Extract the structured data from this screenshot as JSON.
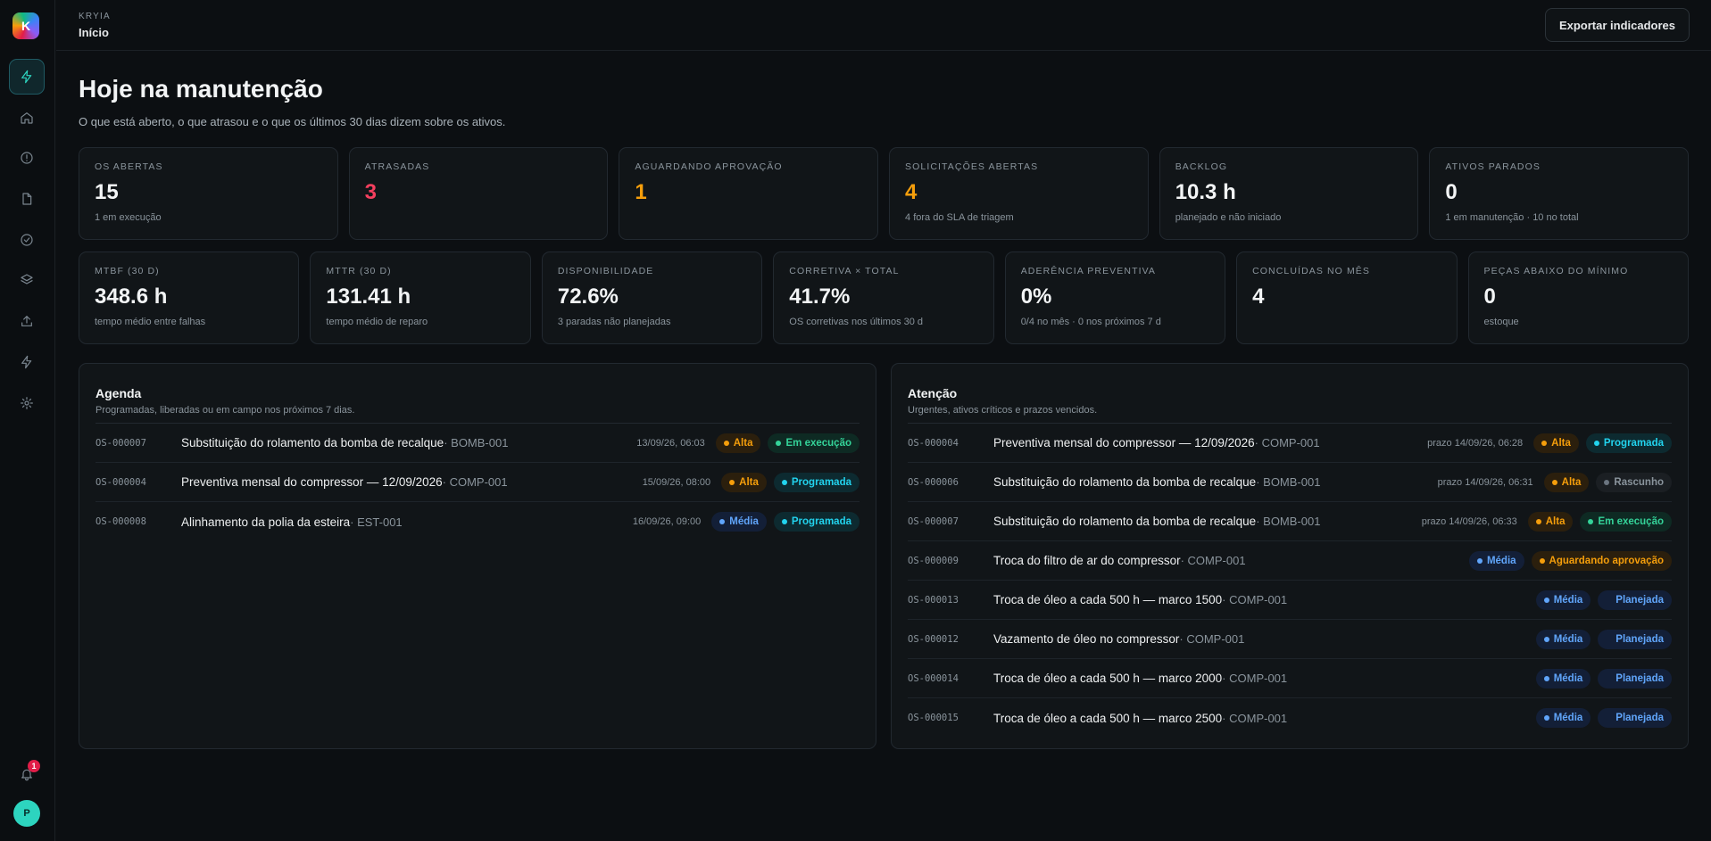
{
  "sidebar": {
    "logo_letter": "K",
    "nav": [
      {
        "name": "bolt-icon",
        "active": true
      },
      {
        "name": "home-icon"
      },
      {
        "name": "alert-icon"
      },
      {
        "name": "document-icon"
      },
      {
        "name": "check-circle-icon"
      },
      {
        "name": "layers-icon"
      },
      {
        "name": "upload-icon"
      },
      {
        "name": "lightning-icon"
      },
      {
        "name": "gear-icon"
      }
    ],
    "notifications_count": "1",
    "avatar_letter": "P"
  },
  "header": {
    "brand": "KRYIA",
    "page": "Início",
    "export_label": "Exportar indicadores"
  },
  "main": {
    "title": "Hoje na manutenção",
    "subtitle": "O que está aberto, o que atrasou e o que os últimos 30 dias dizem sobre os ativos."
  },
  "kpis_row1": [
    {
      "label": "OS ABERTAS",
      "value": "15",
      "sub": "1 em execução",
      "color": ""
    },
    {
      "label": "ATRASADAS",
      "value": "3",
      "sub": "",
      "color": "red"
    },
    {
      "label": "AGUARDANDO APROVAÇÃO",
      "value": "1",
      "sub": "",
      "color": "orange"
    },
    {
      "label": "SOLICITAÇÕES ABERTAS",
      "value": "4",
      "sub": "4 fora do SLA de triagem",
      "color": "orange"
    },
    {
      "label": "BACKLOG",
      "value": "10.3 h",
      "sub": "planejado e não iniciado",
      "color": ""
    },
    {
      "label": "ATIVOS PARADOS",
      "value": "0",
      "sub": "1 em manutenção · 10 no total",
      "color": ""
    }
  ],
  "kpis_row2": [
    {
      "label": "MTBF (30 D)",
      "value": "348.6 h",
      "sub": "tempo médio entre falhas"
    },
    {
      "label": "MTTR (30 D)",
      "value": "131.41 h",
      "sub": "tempo médio de reparo"
    },
    {
      "label": "DISPONIBILIDADE",
      "value": "72.6%",
      "sub": "3 paradas não planejadas"
    },
    {
      "label": "CORRETIVA × TOTAL",
      "value": "41.7%",
      "sub": "OS corretivas nos últimos 30 d"
    },
    {
      "label": "ADERÊNCIA PREVENTIVA",
      "value": "0%",
      "sub": "0/4 no mês · 0 nos próximos 7 d"
    },
    {
      "label": "CONCLUÍDAS NO MÊS",
      "value": "4",
      "sub": ""
    },
    {
      "label": "PEÇAS ABAIXO DO MÍNIMO",
      "value": "0",
      "sub": "estoque"
    }
  ],
  "agenda": {
    "title": "Agenda",
    "subtitle": "Programadas, liberadas ou em campo nos próximos 7 dias.",
    "rows": [
      {
        "code": "OS-000007",
        "title": "Substituição do rolamento da bomba de recalque",
        "asset": " · BOMB-001",
        "date": "13/09/26, 06:03",
        "priority": "Alta",
        "priority_cls": "alta",
        "status": "Em execução",
        "status_cls": "exec"
      },
      {
        "code": "OS-000004",
        "title": "Preventiva mensal do compressor — 12/09/2026",
        "asset": " · COMP-001",
        "date": "15/09/26, 08:00",
        "priority": "Alta",
        "priority_cls": "alta",
        "status": "Programada",
        "status_cls": "prog"
      },
      {
        "code": "OS-000008",
        "title": "Alinhamento da polia da esteira",
        "asset": " · EST-001",
        "date": "16/09/26, 09:00",
        "priority": "Média",
        "priority_cls": "media",
        "status": "Programada",
        "status_cls": "prog"
      }
    ]
  },
  "atencao": {
    "title": "Atenção",
    "subtitle": "Urgentes, ativos críticos e prazos vencidos.",
    "rows": [
      {
        "code": "OS-000004",
        "title": "Preventiva mensal do compressor — 12/09/2026",
        "asset": " · COMP-001",
        "date": "prazo 14/09/26, 06:28",
        "priority": "Alta",
        "priority_cls": "alta",
        "status": "Programada",
        "status_cls": "prog"
      },
      {
        "code": "OS-000006",
        "title": "Substituição do rolamento da bomba de recalque",
        "asset": " · BOMB-001",
        "date": "prazo 14/09/26, 06:31",
        "priority": "Alta",
        "priority_cls": "alta",
        "status": "Rascunho",
        "status_cls": "rasc"
      },
      {
        "code": "OS-000007",
        "title": "Substituição do rolamento da bomba de recalque",
        "asset": " · BOMB-001",
        "date": "prazo 14/09/26, 06:33",
        "priority": "Alta",
        "priority_cls": "alta",
        "status": "Em execução",
        "status_cls": "exec"
      },
      {
        "code": "OS-000009",
        "title": "Troca do filtro de ar do compressor",
        "asset": " · COMP-001",
        "date": "",
        "priority": "Média",
        "priority_cls": "media",
        "status": "Aguardando aprovação",
        "status_cls": "aguard"
      },
      {
        "code": "OS-000013",
        "title": "Troca de óleo a cada 500 h — marco 1500",
        "asset": " · COMP-001",
        "date": "",
        "priority": "Média",
        "priority_cls": "media",
        "status": "Planejada",
        "status_cls": "plan"
      },
      {
        "code": "OS-000012",
        "title": "Vazamento de óleo no compressor",
        "asset": " · COMP-001",
        "date": "",
        "priority": "Média",
        "priority_cls": "media",
        "status": "Planejada",
        "status_cls": "plan"
      },
      {
        "code": "OS-000014",
        "title": "Troca de óleo a cada 500 h — marco 2000",
        "asset": " · COMP-001",
        "date": "",
        "priority": "Média",
        "priority_cls": "media",
        "status": "Planejada",
        "status_cls": "plan"
      },
      {
        "code": "OS-000015",
        "title": "Troca de óleo a cada 500 h — marco 2500",
        "asset": " · COMP-001",
        "date": "",
        "priority": "Média",
        "priority_cls": "media",
        "status": "Planejada",
        "status_cls": "plan"
      }
    ]
  }
}
